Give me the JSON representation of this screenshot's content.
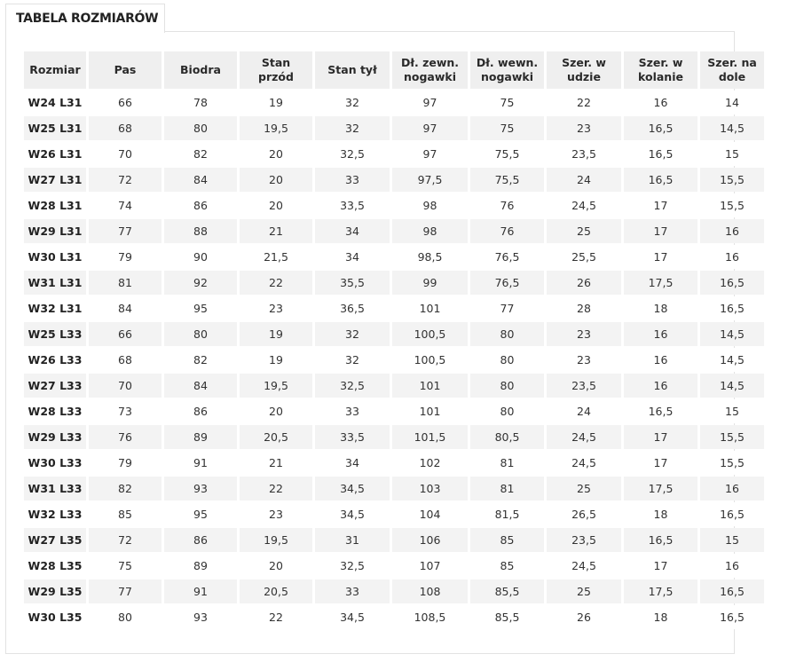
{
  "tab": {
    "label": "TABELA ROZMIARÓW"
  },
  "table": {
    "headers": [
      "Rozmiar",
      "Pas",
      "Biodra",
      "Stan\nprzód",
      "Stan tył",
      "Dł. zewn.\nnogawki",
      "Dł. wewn.\nnogawki",
      "Szer. w\nudzie",
      "Szer. w\nkolanie",
      "Szer. na\ndole"
    ],
    "rows": [
      [
        "W24 L31",
        "66",
        "78",
        "19",
        "32",
        "97",
        "75",
        "22",
        "16",
        "14"
      ],
      [
        "W25 L31",
        "68",
        "80",
        "19,5",
        "32",
        "97",
        "75",
        "23",
        "16,5",
        "14,5"
      ],
      [
        "W26 L31",
        "70",
        "82",
        "20",
        "32,5",
        "97",
        "75,5",
        "23,5",
        "16,5",
        "15"
      ],
      [
        "W27 L31",
        "72",
        "84",
        "20",
        "33",
        "97,5",
        "75,5",
        "24",
        "16,5",
        "15,5"
      ],
      [
        "W28 L31",
        "74",
        "86",
        "20",
        "33,5",
        "98",
        "76",
        "24,5",
        "17",
        "15,5"
      ],
      [
        "W29 L31",
        "77",
        "88",
        "21",
        "34",
        "98",
        "76",
        "25",
        "17",
        "16"
      ],
      [
        "W30 L31",
        "79",
        "90",
        "21,5",
        "34",
        "98,5",
        "76,5",
        "25,5",
        "17",
        "16"
      ],
      [
        "W31 L31",
        "81",
        "92",
        "22",
        "35,5",
        "99",
        "76,5",
        "26",
        "17,5",
        "16,5"
      ],
      [
        "W32 L31",
        "84",
        "95",
        "23",
        "36,5",
        "101",
        "77",
        "28",
        "18",
        "16,5"
      ],
      [
        "W25 L33",
        "66",
        "80",
        "19",
        "32",
        "100,5",
        "80",
        "23",
        "16",
        "14,5"
      ],
      [
        "W26 L33",
        "68",
        "82",
        "19",
        "32",
        "100,5",
        "80",
        "23",
        "16",
        "14,5"
      ],
      [
        "W27 L33",
        "70",
        "84",
        "19,5",
        "32,5",
        "101",
        "80",
        "23,5",
        "16",
        "14,5"
      ],
      [
        "W28 L33",
        "73",
        "86",
        "20",
        "33",
        "101",
        "80",
        "24",
        "16,5",
        "15"
      ],
      [
        "W29 L33",
        "76",
        "89",
        "20,5",
        "33,5",
        "101,5",
        "80,5",
        "24,5",
        "17",
        "15,5"
      ],
      [
        "W30 L33",
        "79",
        "91",
        "21",
        "34",
        "102",
        "81",
        "24,5",
        "17",
        "15,5"
      ],
      [
        "W31 L33",
        "82",
        "93",
        "22",
        "34,5",
        "103",
        "81",
        "25",
        "17,5",
        "16"
      ],
      [
        "W32 L33",
        "85",
        "95",
        "23",
        "34,5",
        "104",
        "81,5",
        "26,5",
        "18",
        "16,5"
      ],
      [
        "W27 L35",
        "72",
        "86",
        "19,5",
        "31",
        "106",
        "85",
        "23,5",
        "16,5",
        "15"
      ],
      [
        "W28 L35",
        "75",
        "89",
        "20",
        "32,5",
        "107",
        "85",
        "24,5",
        "17",
        "16"
      ],
      [
        "W29 L35",
        "77",
        "91",
        "20,5",
        "33",
        "108",
        "85,5",
        "25",
        "17,5",
        "16,5"
      ],
      [
        "W30 L35",
        "80",
        "93",
        "22",
        "34,5",
        "108,5",
        "85,5",
        "26",
        "18",
        "16,5"
      ]
    ]
  }
}
